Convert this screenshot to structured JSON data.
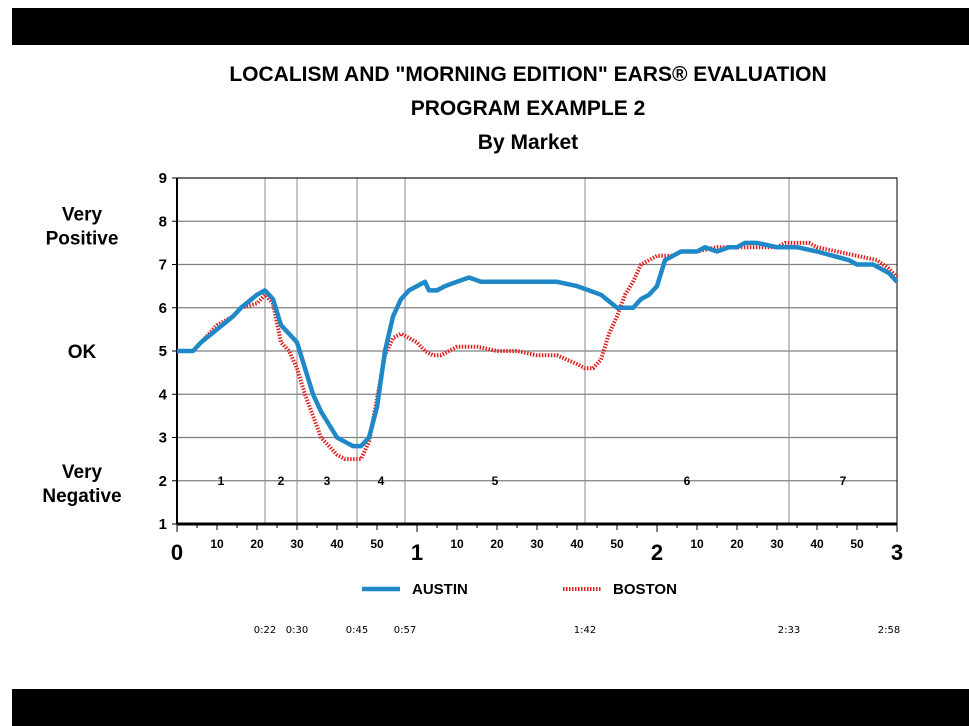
{
  "chart_data": {
    "type": "line",
    "title": [
      "LOCALISM AND \"MORNING EDITION\" EARS® EVALUATION",
      "PROGRAM EXAMPLE 2",
      "By Market"
    ],
    "ylim": [
      1,
      9
    ],
    "yticks": [
      "1",
      "2",
      "3",
      "4",
      "5",
      "6",
      "7",
      "8",
      "9"
    ],
    "y_category_labels": [
      {
        "text": [
          "Very",
          "Positive"
        ],
        "value": 7.9
      },
      {
        "text": [
          "OK"
        ],
        "value": 5
      },
      {
        "text": [
          "Very",
          "Negative"
        ],
        "value": 1.95
      }
    ],
    "xlim": [
      0,
      180
    ],
    "x_major_ticks": [
      {
        "label": "0",
        "value": 0
      },
      {
        "label": "1",
        "value": 60
      },
      {
        "label": "2",
        "value": 120
      },
      {
        "label": "3",
        "value": 180
      }
    ],
    "x_minor_ticks": [
      {
        "label": "10",
        "value": 10
      },
      {
        "label": "20",
        "value": 20
      },
      {
        "label": "30",
        "value": 30
      },
      {
        "label": "40",
        "value": 40
      },
      {
        "label": "50",
        "value": 50
      },
      {
        "label": "10",
        "value": 70
      },
      {
        "label": "20",
        "value": 80
      },
      {
        "label": "30",
        "value": 90
      },
      {
        "label": "40",
        "value": 100
      },
      {
        "label": "50",
        "value": 110
      },
      {
        "label": "10",
        "value": 130
      },
      {
        "label": "20",
        "value": 140
      },
      {
        "label": "30",
        "value": 150
      },
      {
        "label": "40",
        "value": 160
      },
      {
        "label": "50",
        "value": 170
      }
    ],
    "segment_boundaries": [
      22,
      30,
      45,
      57,
      102,
      153
    ],
    "timecodes": [
      {
        "label": "0:22",
        "value": 22
      },
      {
        "label": "0:30",
        "value": 30
      },
      {
        "label": "0:45",
        "value": 45
      },
      {
        "label": "0:57",
        "value": 57
      },
      {
        "label": "1:42",
        "value": 102
      },
      {
        "label": "2:33",
        "value": 153
      },
      {
        "label": "2:58",
        "value": 178
      }
    ],
    "segments": [
      {
        "label": "1",
        "value": 11
      },
      {
        "label": "2",
        "value": 26
      },
      {
        "label": "3",
        "value": 37.5
      },
      {
        "label": "4",
        "value": 51
      },
      {
        "label": "5",
        "value": 79.5
      },
      {
        "label": "6",
        "value": 127.5
      },
      {
        "label": "7",
        "value": 166.5
      }
    ],
    "grid": {
      "horizontal": true,
      "vertical": "segment boundaries"
    },
    "legend": "bottom",
    "series": [
      {
        "name": "AUSTIN",
        "color": "#1f88c6",
        "style": "solid",
        "x": [
          0,
          4,
          6,
          10,
          14,
          16,
          20,
          22,
          24,
          26,
          28,
          30,
          32,
          34,
          36,
          38,
          40,
          42,
          44,
          45,
          46,
          48,
          50,
          52,
          54,
          56,
          58,
          60,
          62,
          63,
          65,
          67,
          70,
          73,
          76,
          80,
          85,
          90,
          95,
          100,
          103,
          106,
          110,
          112,
          114,
          116,
          118,
          120,
          122,
          124,
          126,
          128,
          130,
          132,
          135,
          138,
          140,
          142,
          145,
          150,
          155,
          160,
          164,
          168,
          170,
          172,
          174,
          176,
          178,
          180
        ],
        "y": [
          5.0,
          5.0,
          5.2,
          5.5,
          5.8,
          6.0,
          6.3,
          6.4,
          6.2,
          5.6,
          5.4,
          5.2,
          4.6,
          4.0,
          3.6,
          3.3,
          3.0,
          2.9,
          2.8,
          2.8,
          2.8,
          3.0,
          3.7,
          5.0,
          5.8,
          6.2,
          6.4,
          6.5,
          6.6,
          6.4,
          6.4,
          6.5,
          6.6,
          6.7,
          6.6,
          6.6,
          6.6,
          6.6,
          6.6,
          6.5,
          6.4,
          6.3,
          6.0,
          6.0,
          6.0,
          6.2,
          6.3,
          6.5,
          7.1,
          7.2,
          7.3,
          7.3,
          7.3,
          7.4,
          7.3,
          7.4,
          7.4,
          7.5,
          7.5,
          7.4,
          7.4,
          7.3,
          7.2,
          7.1,
          7.0,
          7.0,
          7.0,
          6.9,
          6.8,
          6.6
        ]
      },
      {
        "name": "BOSTON",
        "color": "#e02020",
        "style": "dashed",
        "x": [
          0,
          4,
          6,
          10,
          14,
          16,
          20,
          22,
          24,
          26,
          28,
          30,
          32,
          34,
          36,
          38,
          40,
          42,
          44,
          46,
          48,
          50,
          52,
          54,
          56,
          58,
          60,
          62,
          64,
          66,
          70,
          75,
          80,
          85,
          90,
          95,
          100,
          102,
          104,
          106,
          108,
          110,
          112,
          114,
          116,
          118,
          120,
          122,
          124,
          126,
          130,
          135,
          140,
          145,
          150,
          152,
          155,
          158,
          160,
          165,
          170,
          175,
          178,
          180
        ],
        "y": [
          5.0,
          5.0,
          5.2,
          5.6,
          5.8,
          6.0,
          6.1,
          6.3,
          6.1,
          5.2,
          5.0,
          4.6,
          4.0,
          3.5,
          3.0,
          2.8,
          2.6,
          2.5,
          2.5,
          2.5,
          2.9,
          3.9,
          4.9,
          5.3,
          5.4,
          5.3,
          5.2,
          5.0,
          4.9,
          4.9,
          5.1,
          5.1,
          5.0,
          5.0,
          4.9,
          4.9,
          4.7,
          4.6,
          4.6,
          4.8,
          5.4,
          5.8,
          6.3,
          6.6,
          7.0,
          7.1,
          7.2,
          7.2,
          7.2,
          7.3,
          7.3,
          7.4,
          7.4,
          7.4,
          7.4,
          7.5,
          7.5,
          7.5,
          7.4,
          7.3,
          7.2,
          7.1,
          6.9,
          6.7
        ]
      }
    ]
  }
}
